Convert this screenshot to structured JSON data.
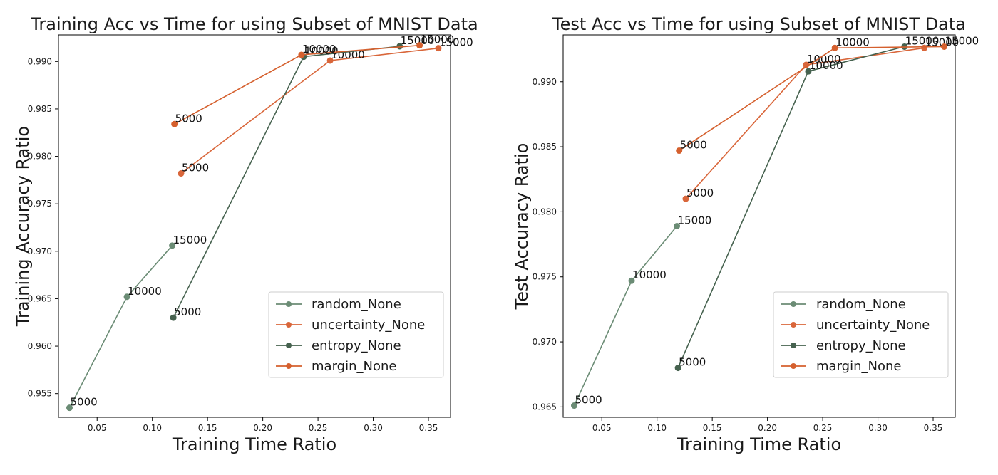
{
  "chart_data": [
    {
      "type": "line",
      "title": "Training Acc vs Time for using Subset of MNIST Data",
      "xlabel": "Training Time Ratio",
      "ylabel": "Training Accuracy Ratio",
      "xlim": [
        0.015,
        0.37
      ],
      "ylim": [
        0.9525,
        0.9928
      ],
      "xticks": [
        0.05,
        0.1,
        0.15,
        0.2,
        0.25,
        0.3,
        0.35
      ],
      "xtick_labels": [
        "0.05",
        "0.10",
        "0.15",
        "0.20",
        "0.25",
        "0.30",
        "0.35"
      ],
      "yticks": [
        0.955,
        0.96,
        0.965,
        0.97,
        0.975,
        0.98,
        0.985,
        0.99
      ],
      "ytick_labels": [
        "0.955",
        "0.960",
        "0.965",
        "0.970",
        "0.975",
        "0.980",
        "0.985",
        "0.990"
      ],
      "grid": false,
      "legend_position": "lower-right",
      "series": [
        {
          "name": "random_None",
          "color": "#6b8c75",
          "x": [
            0.025,
            0.077,
            0.118
          ],
          "y": [
            0.9535,
            0.9652,
            0.9706
          ],
          "labels": [
            "5000",
            "10000",
            "15000"
          ]
        },
        {
          "name": "uncertainty_None",
          "color": "#d9663a",
          "x": [
            0.126,
            0.261,
            0.359
          ],
          "y": [
            0.9782,
            0.9901,
            0.9914
          ],
          "labels": [
            "5000",
            "10000",
            "15000"
          ]
        },
        {
          "name": "entropy_None",
          "color": "#46624f",
          "x": [
            0.119,
            0.237,
            0.324
          ],
          "y": [
            0.963,
            0.9905,
            0.9916
          ],
          "labels": [
            "5000",
            "10000",
            "15000"
          ]
        },
        {
          "name": "margin_None",
          "color": "#d5602e",
          "x": [
            0.12,
            0.235,
            0.342
          ],
          "y": [
            0.9834,
            0.9907,
            0.9917
          ],
          "labels": [
            "5000",
            "10000",
            "15000"
          ]
        }
      ]
    },
    {
      "type": "line",
      "title": "Test Acc vs Time for using Subset of MNIST Data",
      "xlabel": "Training Time Ratio",
      "ylabel": "Test Accuracy Ratio",
      "xlim": [
        0.015,
        0.37
      ],
      "ylim": [
        0.9642,
        0.9936
      ],
      "xticks": [
        0.05,
        0.1,
        0.15,
        0.2,
        0.25,
        0.3,
        0.35
      ],
      "xtick_labels": [
        "0.05",
        "0.10",
        "0.15",
        "0.20",
        "0.25",
        "0.30",
        "0.35"
      ],
      "yticks": [
        0.965,
        0.97,
        0.975,
        0.98,
        0.985,
        0.99
      ],
      "ytick_labels": [
        "0.965",
        "0.970",
        "0.975",
        "0.980",
        "0.985",
        "0.990"
      ],
      "grid": false,
      "legend_position": "lower-right",
      "series": [
        {
          "name": "random_None",
          "color": "#6b8c75",
          "x": [
            0.025,
            0.077,
            0.118
          ],
          "y": [
            0.9651,
            0.9747,
            0.9789
          ],
          "labels": [
            "5000",
            "10000",
            "15000"
          ]
        },
        {
          "name": "uncertainty_None",
          "color": "#d9663a",
          "x": [
            0.126,
            0.235,
            0.342
          ],
          "y": [
            0.981,
            0.9913,
            0.9926
          ],
          "labels": [
            "5000",
            "10000",
            "15000"
          ]
        },
        {
          "name": "entropy_None",
          "color": "#46624f",
          "x": [
            0.119,
            0.237,
            0.324
          ],
          "y": [
            0.968,
            0.9908,
            0.9927
          ],
          "labels": [
            "5000",
            "10000",
            "15000"
          ]
        },
        {
          "name": "margin_None",
          "color": "#d5602e",
          "x": [
            0.12,
            0.261,
            0.36
          ],
          "y": [
            0.9847,
            0.9926,
            0.9927
          ],
          "labels": [
            "5000",
            "10000",
            "15000"
          ]
        }
      ]
    }
  ]
}
